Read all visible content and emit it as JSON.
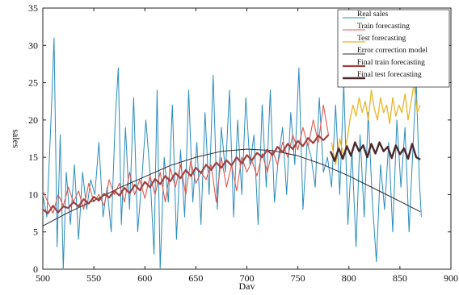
{
  "chart_data": {
    "type": "line",
    "title": "",
    "xlabel": "Dav",
    "ylabel": "sales",
    "xlim": [
      500,
      900
    ],
    "ylim": [
      0,
      35
    ],
    "x_ticks": [
      "500",
      "550",
      "600",
      "650",
      "700",
      "750",
      "800",
      "850",
      "900"
    ],
    "y_ticks": [
      "0",
      "5",
      "10",
      "15",
      "20",
      "25",
      "30",
      "35"
    ],
    "grid": false,
    "legend_position": "top-right",
    "series": [
      {
        "name": "Real sales",
        "color": "#2b8cbe",
        "width": 1,
        "points": [
          [
            500,
            10
          ],
          [
            504,
            7
          ],
          [
            508,
            20
          ],
          [
            511,
            31
          ],
          [
            514,
            3
          ],
          [
            517,
            18
          ],
          [
            520,
            0
          ],
          [
            523,
            13
          ],
          [
            527,
            6
          ],
          [
            531,
            14
          ],
          [
            535,
            4
          ],
          [
            539,
            13
          ],
          [
            543,
            8
          ],
          [
            547,
            12
          ],
          [
            551,
            10
          ],
          [
            555,
            17
          ],
          [
            559,
            7
          ],
          [
            563,
            11
          ],
          [
            567,
            5
          ],
          [
            571,
            20
          ],
          [
            574,
            27
          ],
          [
            577,
            6
          ],
          [
            581,
            19
          ],
          [
            585,
            8
          ],
          [
            589,
            23
          ],
          [
            593,
            5
          ],
          [
            597,
            12
          ],
          [
            601,
            20
          ],
          [
            605,
            13
          ],
          [
            609,
            2
          ],
          [
            612,
            24
          ],
          [
            615,
            0
          ],
          [
            619,
            15
          ],
          [
            623,
            9
          ],
          [
            627,
            22
          ],
          [
            631,
            4
          ],
          [
            635,
            16
          ],
          [
            639,
            7
          ],
          [
            643,
            24
          ],
          [
            647,
            9
          ],
          [
            651,
            17
          ],
          [
            655,
            6
          ],
          [
            659,
            21
          ],
          [
            663,
            10
          ],
          [
            667,
            26
          ],
          [
            671,
            8
          ],
          [
            675,
            19
          ],
          [
            679,
            13
          ],
          [
            683,
            24
          ],
          [
            687,
            7
          ],
          [
            691,
            20
          ],
          [
            695,
            10
          ],
          [
            699,
            23
          ],
          [
            703,
            14
          ],
          [
            707,
            18
          ],
          [
            711,
            6
          ],
          [
            715,
            22
          ],
          [
            719,
            11
          ],
          [
            723,
            24
          ],
          [
            727,
            9
          ],
          [
            731,
            15
          ],
          [
            735,
            19
          ],
          [
            739,
            10
          ],
          [
            743,
            21
          ],
          [
            747,
            14
          ],
          [
            751,
            27
          ],
          [
            755,
            8
          ],
          [
            759,
            17
          ],
          [
            763,
            15
          ],
          [
            767,
            11
          ],
          [
            771,
            23
          ],
          [
            775,
            13
          ],
          [
            779,
            15
          ],
          [
            783,
            11
          ],
          [
            787,
            22
          ],
          [
            791,
            10
          ],
          [
            795,
            25
          ],
          [
            799,
            6
          ],
          [
            803,
            16
          ],
          [
            807,
            3
          ],
          [
            811,
            18
          ],
          [
            815,
            7
          ],
          [
            819,
            21
          ],
          [
            823,
            9
          ],
          [
            827,
            1
          ],
          [
            831,
            14
          ],
          [
            835,
            8
          ],
          [
            839,
            17
          ],
          [
            843,
            5
          ],
          [
            847,
            20
          ],
          [
            851,
            11
          ],
          [
            855,
            19
          ],
          [
            859,
            5
          ],
          [
            863,
            17
          ],
          [
            866,
            25
          ],
          [
            869,
            12
          ],
          [
            871,
            7
          ]
        ]
      },
      {
        "name": "Train forecasting",
        "color": "#e05a4f",
        "width": 1.1,
        "points": [
          [
            500,
            10.5
          ],
          [
            505,
            9
          ],
          [
            510,
            7.5
          ],
          [
            515,
            10
          ],
          [
            520,
            8.5
          ],
          [
            525,
            11
          ],
          [
            530,
            9
          ],
          [
            535,
            10.5
          ],
          [
            540,
            8
          ],
          [
            545,
            11.5
          ],
          [
            550,
            9
          ],
          [
            555,
            10
          ],
          [
            560,
            8.5
          ],
          [
            565,
            12
          ],
          [
            570,
            10
          ],
          [
            575,
            11.5
          ],
          [
            580,
            9
          ],
          [
            585,
            13
          ],
          [
            590,
            10
          ],
          [
            595,
            12
          ],
          [
            600,
            9.5
          ],
          [
            605,
            12.5
          ],
          [
            610,
            10
          ],
          [
            615,
            13
          ],
          [
            620,
            9
          ],
          [
            625,
            13.5
          ],
          [
            630,
            11
          ],
          [
            635,
            14
          ],
          [
            640,
            10
          ],
          [
            645,
            14.5
          ],
          [
            650,
            11.5
          ],
          [
            655,
            13
          ],
          [
            660,
            12
          ],
          [
            665,
            14
          ],
          [
            670,
            9
          ],
          [
            675,
            15
          ],
          [
            680,
            11
          ],
          [
            685,
            14
          ],
          [
            690,
            10.5
          ],
          [
            695,
            15
          ],
          [
            700,
            13
          ],
          [
            705,
            14.5
          ],
          [
            710,
            12.5
          ],
          [
            715,
            15.5
          ],
          [
            720,
            13
          ],
          [
            725,
            16
          ],
          [
            730,
            14
          ],
          [
            735,
            17
          ],
          [
            740,
            15
          ],
          [
            745,
            18
          ],
          [
            750,
            16
          ],
          [
            755,
            19
          ],
          [
            760,
            16.5
          ],
          [
            765,
            20
          ],
          [
            770,
            17
          ],
          [
            775,
            22
          ],
          [
            780,
            18
          ]
        ]
      },
      {
        "name": "Test forecasting",
        "color": "#e8b72c",
        "width": 1.3,
        "points": [
          [
            783,
            17
          ],
          [
            787,
            14
          ],
          [
            791,
            17.5
          ],
          [
            795,
            15
          ],
          [
            799,
            18
          ],
          [
            801,
            20
          ],
          [
            804,
            22
          ],
          [
            807,
            20.5
          ],
          [
            810,
            23
          ],
          [
            813,
            21
          ],
          [
            816,
            22.5
          ],
          [
            819,
            20
          ],
          [
            822,
            24
          ],
          [
            825,
            21.5
          ],
          [
            828,
            20
          ],
          [
            831,
            23
          ],
          [
            834,
            21
          ],
          [
            837,
            22
          ],
          [
            840,
            19.5
          ],
          [
            843,
            23
          ],
          [
            846,
            20.5
          ],
          [
            849,
            22
          ],
          [
            852,
            21
          ],
          [
            855,
            23.5
          ],
          [
            858,
            20
          ],
          [
            861,
            22.5
          ],
          [
            864,
            25
          ],
          [
            867,
            21
          ],
          [
            870,
            22
          ]
        ]
      },
      {
        "name": "Error correction model",
        "color": "#2a2a2a",
        "width": 1,
        "points": [
          [
            500,
            5.8
          ],
          [
            525,
            7.6
          ],
          [
            550,
            9.2
          ],
          [
            575,
            10.9
          ],
          [
            600,
            12.4
          ],
          [
            625,
            13.9
          ],
          [
            650,
            15
          ],
          [
            675,
            15.8
          ],
          [
            700,
            16.1
          ],
          [
            725,
            15.9
          ],
          [
            750,
            15.2
          ],
          [
            775,
            14
          ],
          [
            800,
            12.5
          ],
          [
            825,
            10.8
          ],
          [
            850,
            9.1
          ],
          [
            870,
            7.7
          ]
        ]
      },
      {
        "name": "Final train forecasting",
        "color": "#a04040",
        "width": 2.2,
        "points": [
          [
            500,
            8
          ],
          [
            505,
            7.5
          ],
          [
            510,
            8.5
          ],
          [
            515,
            7.6
          ],
          [
            520,
            8.4
          ],
          [
            525,
            8.2
          ],
          [
            530,
            9
          ],
          [
            535,
            8.4
          ],
          [
            540,
            9.4
          ],
          [
            545,
            8.8
          ],
          [
            550,
            9.7
          ],
          [
            555,
            9.2
          ],
          [
            560,
            10.1
          ],
          [
            565,
            9.6
          ],
          [
            570,
            10.5
          ],
          [
            575,
            9.9
          ],
          [
            580,
            10.9
          ],
          [
            585,
            10.2
          ],
          [
            590,
            11.3
          ],
          [
            595,
            10.6
          ],
          [
            600,
            11.7
          ],
          [
            605,
            11
          ],
          [
            610,
            12.1
          ],
          [
            615,
            11.4
          ],
          [
            620,
            12.5
          ],
          [
            625,
            11.8
          ],
          [
            630,
            12.9
          ],
          [
            635,
            12.2
          ],
          [
            640,
            13.3
          ],
          [
            645,
            12.5
          ],
          [
            650,
            13.6
          ],
          [
            655,
            12.9
          ],
          [
            660,
            14
          ],
          [
            665,
            13.3
          ],
          [
            670,
            14.3
          ],
          [
            675,
            13.6
          ],
          [
            680,
            14.6
          ],
          [
            685,
            13.9
          ],
          [
            690,
            15
          ],
          [
            695,
            14.2
          ],
          [
            700,
            15.3
          ],
          [
            705,
            14.6
          ],
          [
            710,
            15.6
          ],
          [
            715,
            15
          ],
          [
            720,
            16
          ],
          [
            725,
            15.3
          ],
          [
            730,
            16.4
          ],
          [
            735,
            15.7
          ],
          [
            740,
            16.8
          ],
          [
            745,
            16.1
          ],
          [
            750,
            17.2
          ],
          [
            755,
            16.5
          ],
          [
            760,
            17.6
          ],
          [
            765,
            16.9
          ],
          [
            770,
            17.9
          ],
          [
            775,
            17.3
          ],
          [
            780,
            18
          ]
        ]
      },
      {
        "name": "Final test forecasting",
        "color": "#4a2a2e",
        "width": 2.4,
        "points": [
          [
            782,
            15.8
          ],
          [
            786,
            14.5
          ],
          [
            790,
            16.2
          ],
          [
            794,
            14.8
          ],
          [
            798,
            16.5
          ],
          [
            802,
            15.2
          ],
          [
            806,
            17
          ],
          [
            810,
            15.8
          ],
          [
            814,
            16.6
          ],
          [
            818,
            15
          ],
          [
            822,
            16.8
          ],
          [
            826,
            15.5
          ],
          [
            830,
            17
          ],
          [
            834,
            15.8
          ],
          [
            838,
            16.4
          ],
          [
            842,
            14.9
          ],
          [
            846,
            16.6
          ],
          [
            850,
            15.4
          ],
          [
            854,
            16.2
          ],
          [
            858,
            14.8
          ],
          [
            862,
            16.8
          ],
          [
            866,
            15
          ],
          [
            870,
            14.7
          ]
        ]
      }
    ]
  }
}
